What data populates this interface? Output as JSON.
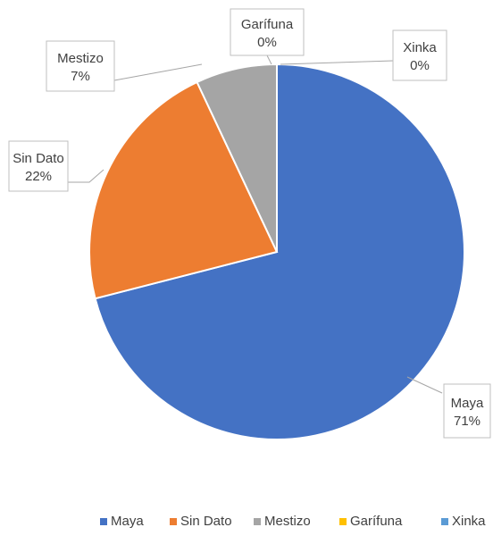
{
  "chart_data": {
    "type": "pie",
    "title": "",
    "categories": [
      "Maya",
      "Sin Dato",
      "Mestizo",
      "Garífuna",
      "Xinka"
    ],
    "values": [
      71,
      22,
      7,
      0,
      0
    ],
    "value_labels": [
      "71%",
      "22%",
      "7%",
      "0%",
      "0%"
    ],
    "colors": [
      "#4472C4",
      "#ED7D31",
      "#A5A5A5",
      "#FFC000",
      "#5B9BD5"
    ],
    "legend_position": "bottom",
    "start_angle": "12 o'clock",
    "direction": "clockwise"
  }
}
